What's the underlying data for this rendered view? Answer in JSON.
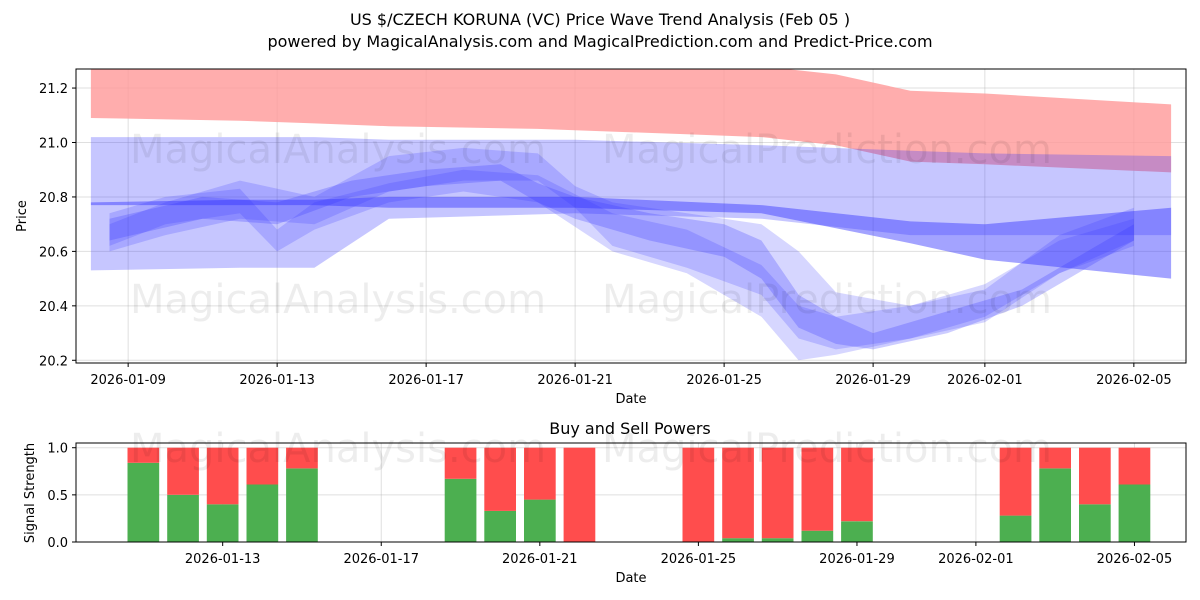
{
  "title_line1": "US $/CZECH KORUNA (VC) Price Wave Trend Analysis (Feb 05 )",
  "title_line2": "powered by MagicalAnalysis.com and MagicalPrediction.com and Predict-Price.com",
  "watermarks": [
    "MagicalAnalysis.com",
    "MagicalPrediction.com"
  ],
  "colors": {
    "red_band": "#ff9999",
    "blue_band": "#3333ff",
    "green": "#4caf50",
    "red": "#ff4d4d"
  },
  "chart_data": [
    {
      "type": "area",
      "title": "US $/CZECH KORUNA (VC) Price Wave Trend Analysis (Feb 05 )",
      "xlabel": "Date",
      "ylabel": "Price",
      "x_ticks": [
        "2026-01-09",
        "2026-01-13",
        "2026-01-17",
        "2026-01-21",
        "2026-01-25",
        "2026-01-29",
        "2026-02-01",
        "2026-02-05"
      ],
      "x_tick_day": [
        1,
        5,
        9,
        13,
        17,
        21,
        24,
        28
      ],
      "xlim_day": [
        -0.4,
        29.4
      ],
      "y_ticks": [
        "20.2",
        "20.4",
        "20.6",
        "20.8",
        "21.0",
        "21.2"
      ],
      "y_tick_values": [
        20.2,
        20.4,
        20.6,
        20.8,
        21.0,
        21.2
      ],
      "ylim": [
        20.19,
        21.27
      ],
      "grid": true,
      "red_band": {
        "x": [
          0,
          4,
          6,
          8,
          12,
          16,
          18,
          20,
          22,
          24,
          29
        ],
        "upper": [
          21.28,
          21.28,
          21.28,
          21.28,
          21.28,
          21.28,
          21.28,
          21.25,
          21.19,
          21.18,
          21.14
        ],
        "lower": [
          21.09,
          21.08,
          21.07,
          21.06,
          21.05,
          21.03,
          21.02,
          20.99,
          20.93,
          20.92,
          20.89
        ]
      },
      "blue_bands": [
        {
          "x": [
            0,
            4,
            6,
            8,
            13,
            18,
            22,
            24,
            29
          ],
          "upper": [
            21.02,
            21.02,
            21.02,
            21.01,
            21.01,
            20.99,
            20.97,
            20.96,
            20.95
          ],
          "lower": [
            20.53,
            20.54,
            20.54,
            20.72,
            20.74,
            20.72,
            20.66,
            20.66,
            20.66
          ],
          "opacity": 0.28
        },
        {
          "x": [
            0,
            4,
            6,
            8,
            13,
            18,
            22,
            24,
            29
          ],
          "upper": [
            20.78,
            20.79,
            20.79,
            20.8,
            20.8,
            20.77,
            20.71,
            20.7,
            20.76
          ],
          "lower": [
            20.77,
            20.77,
            20.77,
            20.76,
            20.76,
            20.74,
            20.63,
            20.57,
            20.5
          ],
          "opacity": 0.45
        },
        {
          "x": [
            0.5,
            2,
            4,
            6,
            8,
            10,
            12,
            13,
            14,
            16,
            18,
            19,
            20,
            22,
            24,
            26,
            28
          ],
          "upper": [
            20.7,
            20.78,
            20.86,
            20.8,
            20.95,
            20.98,
            20.96,
            20.84,
            20.78,
            20.74,
            20.7,
            20.6,
            20.45,
            20.4,
            20.46,
            20.66,
            20.76
          ],
          "lower": [
            20.6,
            20.66,
            20.72,
            20.7,
            20.82,
            20.86,
            20.86,
            20.76,
            20.62,
            20.54,
            20.44,
            20.28,
            20.24,
            20.28,
            20.34,
            20.52,
            20.62
          ],
          "opacity": 0.2
        },
        {
          "x": [
            0.5,
            2,
            4,
            5,
            6,
            8,
            10,
            12,
            14,
            16,
            18,
            19,
            20,
            22,
            24,
            26,
            28
          ],
          "upper": [
            20.74,
            20.8,
            20.83,
            20.68,
            20.78,
            20.85,
            20.9,
            20.88,
            20.74,
            20.68,
            20.55,
            20.4,
            20.36,
            20.4,
            20.48,
            20.64,
            20.72
          ],
          "lower": [
            20.62,
            20.7,
            20.74,
            20.6,
            20.68,
            20.78,
            20.82,
            20.78,
            20.6,
            20.52,
            20.36,
            20.2,
            20.22,
            20.28,
            20.36,
            20.52,
            20.64
          ],
          "opacity": 0.2
        },
        {
          "x": [
            0.5,
            3,
            5,
            7,
            9,
            11,
            12,
            13,
            15,
            17,
            18,
            19,
            20,
            21,
            23,
            25,
            27,
            28
          ],
          "upper": [
            20.72,
            20.8,
            20.78,
            20.86,
            20.9,
            20.92,
            20.85,
            20.8,
            20.74,
            20.7,
            20.64,
            20.44,
            20.36,
            20.3,
            20.38,
            20.46,
            20.62,
            20.7
          ],
          "lower": [
            20.64,
            20.72,
            20.7,
            20.8,
            20.84,
            20.86,
            20.78,
            20.72,
            20.64,
            20.58,
            20.5,
            20.32,
            20.26,
            20.24,
            20.3,
            20.4,
            20.56,
            20.64
          ],
          "opacity": 0.25
        }
      ]
    },
    {
      "type": "bar",
      "title": "Buy and Sell Powers",
      "xlabel": "Date",
      "ylabel": "Signal Strength",
      "x_ticks": [
        "2026-01-13",
        "2026-01-17",
        "2026-01-21",
        "2026-01-25",
        "2026-01-29",
        "2026-02-01",
        "2026-02-05"
      ],
      "x_tick_day": [
        5,
        9,
        13,
        17,
        21,
        24,
        28
      ],
      "xlim_day": [
        1.3,
        29.3
      ],
      "y_ticks": [
        "0.0",
        "0.5",
        "1.0"
      ],
      "y_tick_values": [
        0,
        0.5,
        1.0
      ],
      "ylim": [
        0,
        1.05
      ],
      "day": [
        3,
        4,
        5,
        6,
        7,
        11,
        12,
        13,
        14,
        17,
        18,
        19,
        20,
        21,
        25,
        26,
        27,
        28
      ],
      "buy": [
        0.84,
        0.5,
        0.4,
        0.61,
        0.78,
        0.67,
        0.33,
        0.45,
        0.0,
        0.0,
        0.04,
        0.04,
        0.12,
        0.22,
        0.28,
        0.78,
        0.4,
        0.61
      ],
      "sell": [
        0.16,
        0.5,
        0.6,
        0.39,
        0.22,
        0.33,
        0.67,
        0.55,
        1.0,
        1.0,
        0.96,
        0.96,
        0.88,
        0.78,
        0.72,
        0.22,
        0.6,
        0.39
      ],
      "series_names": [
        "Buy",
        "Sell"
      ]
    }
  ]
}
